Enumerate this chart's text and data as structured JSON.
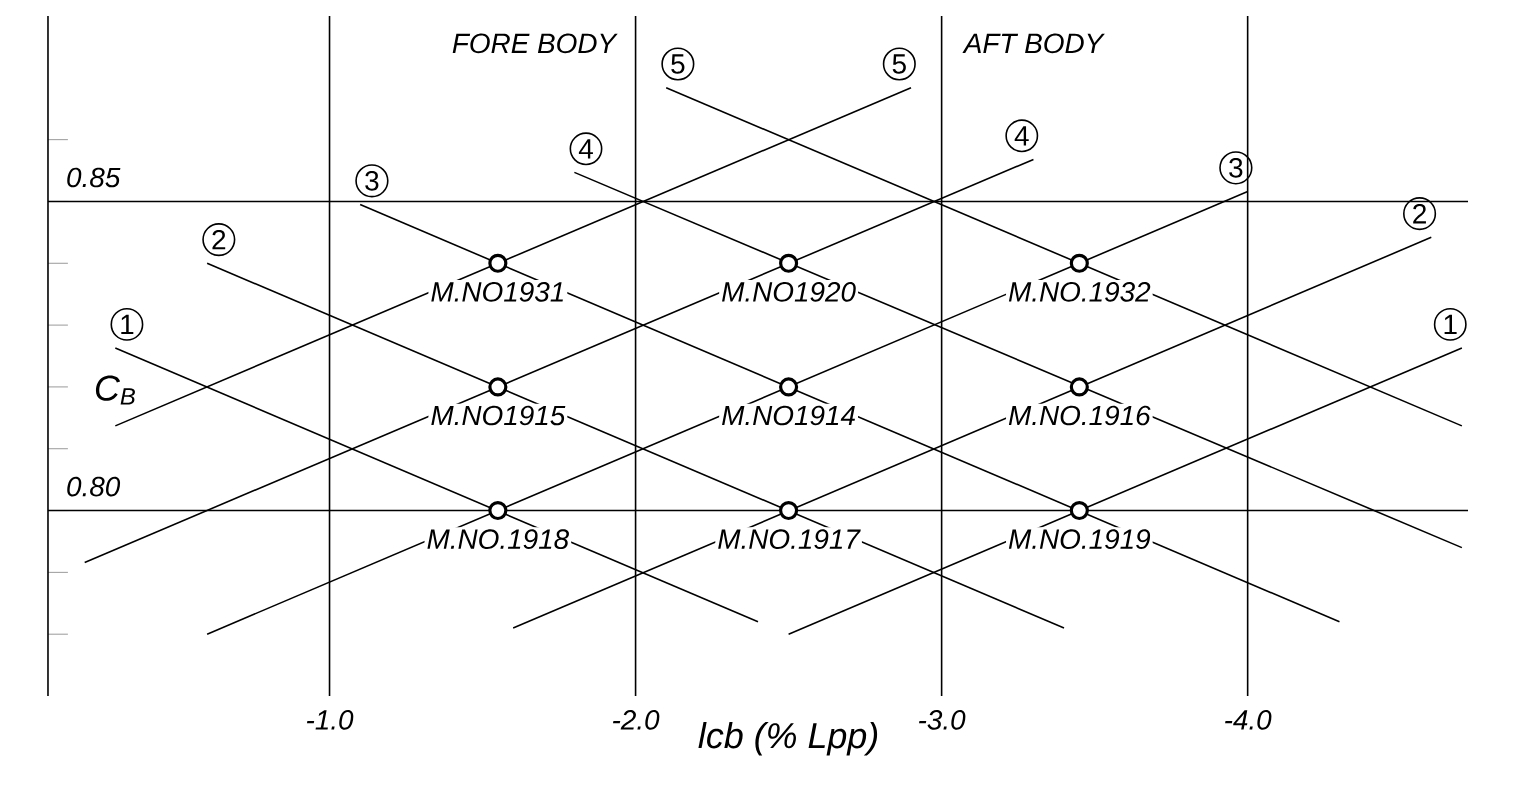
{
  "chart_data": {
    "type": "scatter",
    "xlabel": "lcb (% Lpp)",
    "ylabel": "C$_{B}$",
    "xlim": [
      -0.08,
      -4.72
    ],
    "ylim": [
      0.77,
      0.88
    ],
    "xticks": [
      {
        "value": -1,
        "label": "-1.0"
      },
      {
        "value": -2,
        "label": "-2.0"
      },
      {
        "value": -3,
        "label": "-3.0"
      },
      {
        "value": -4,
        "label": "-4.0"
      }
    ],
    "yticks": [
      {
        "value": 0.78,
        "label": null
      },
      {
        "value": 0.79,
        "label": null
      },
      {
        "value": 0.8,
        "label": "0.80"
      },
      {
        "value": 0.81,
        "label": null
      },
      {
        "value": 0.82,
        "label": null
      },
      {
        "value": 0.83,
        "label": null
      },
      {
        "value": 0.84,
        "label": null
      },
      {
        "value": 0.85,
        "label": "0.85"
      },
      {
        "value": 0.86,
        "label": null
      }
    ],
    "grid": "x",
    "ref_lines": [
      {
        "axis": "y",
        "value": 0.85
      },
      {
        "axis": "y",
        "value": 0.8
      }
    ],
    "series": [
      {
        "marker": "circle",
        "color": "#000000",
        "x": [
          -1.55,
          -2.5,
          -3.45,
          -1.55,
          -2.5,
          -3.45,
          -1.55,
          -2.5,
          -3.45
        ],
        "values": [
          0.84,
          0.84,
          0.84,
          0.82,
          0.82,
          0.82,
          0.8,
          0.8,
          0.8
        ]
      },
      {
        "type": "line",
        "name": "1",
        "color": "#000000",
        "x": [
          -0.3,
          -2.4
        ],
        "values": [
          0.8263,
          0.782
        ]
      },
      {
        "type": "line",
        "name": "2",
        "color": "#000000",
        "x": [
          -0.6,
          -3.4
        ],
        "values": [
          0.84,
          0.781
        ]
      },
      {
        "type": "line",
        "name": "3",
        "color": "#000000",
        "x": [
          -1.1,
          -4.3
        ],
        "values": [
          0.8495,
          0.782
        ]
      },
      {
        "type": "line",
        "name": "4",
        "color": "#000000",
        "x": [
          -1.8,
          -4.7
        ],
        "values": [
          0.8547,
          0.794
        ]
      },
      {
        "type": "line",
        "name": "5",
        "color": "#000000",
        "x": [
          -2.1,
          -4.7
        ],
        "values": [
          0.8684,
          0.8137
        ]
      },
      {
        "type": "line",
        "name": "1",
        "color": "#000000",
        "x": [
          -2.5,
          -4.7
        ],
        "values": [
          0.78,
          0.8263
        ]
      },
      {
        "type": "line",
        "name": "2",
        "color": "#000000",
        "x": [
          -1.6,
          -4.6
        ],
        "values": [
          0.781,
          0.8442
        ]
      },
      {
        "type": "line",
        "name": "3",
        "color": "#000000",
        "x": [
          -0.6,
          -4.0
        ],
        "values": [
          0.78,
          0.8516
        ]
      },
      {
        "type": "line",
        "name": "4",
        "color": "#000000",
        "x": [
          -0.2,
          -3.3
        ],
        "values": [
          0.7916,
          0.8568
        ]
      },
      {
        "type": "line",
        "name": "5",
        "color": "#000000",
        "x": [
          -0.3,
          -2.9
        ],
        "values": [
          0.8137,
          0.8684
        ]
      }
    ],
    "annotations": [
      {
        "text": "M.NO1931",
        "x": -1.55,
        "y": 0.84
      },
      {
        "text": "M.NO1920",
        "x": -2.5,
        "y": 0.84
      },
      {
        "text": "M.NO.1932",
        "x": -3.45,
        "y": 0.84
      },
      {
        "text": "M.NO1915",
        "x": -1.55,
        "y": 0.82
      },
      {
        "text": "M.NO1914",
        "x": -2.5,
        "y": 0.82
      },
      {
        "text": "M.NO.1916",
        "x": -3.45,
        "y": 0.82
      },
      {
        "text": "M.NO.1918",
        "x": -1.55,
        "y": 0.8
      },
      {
        "text": "M.NO.1917",
        "x": -2.5,
        "y": 0.8
      },
      {
        "text": "M.NO.1919",
        "x": -3.45,
        "y": 0.8
      },
      "FORE BODY",
      "AFT BODY"
    ]
  }
}
